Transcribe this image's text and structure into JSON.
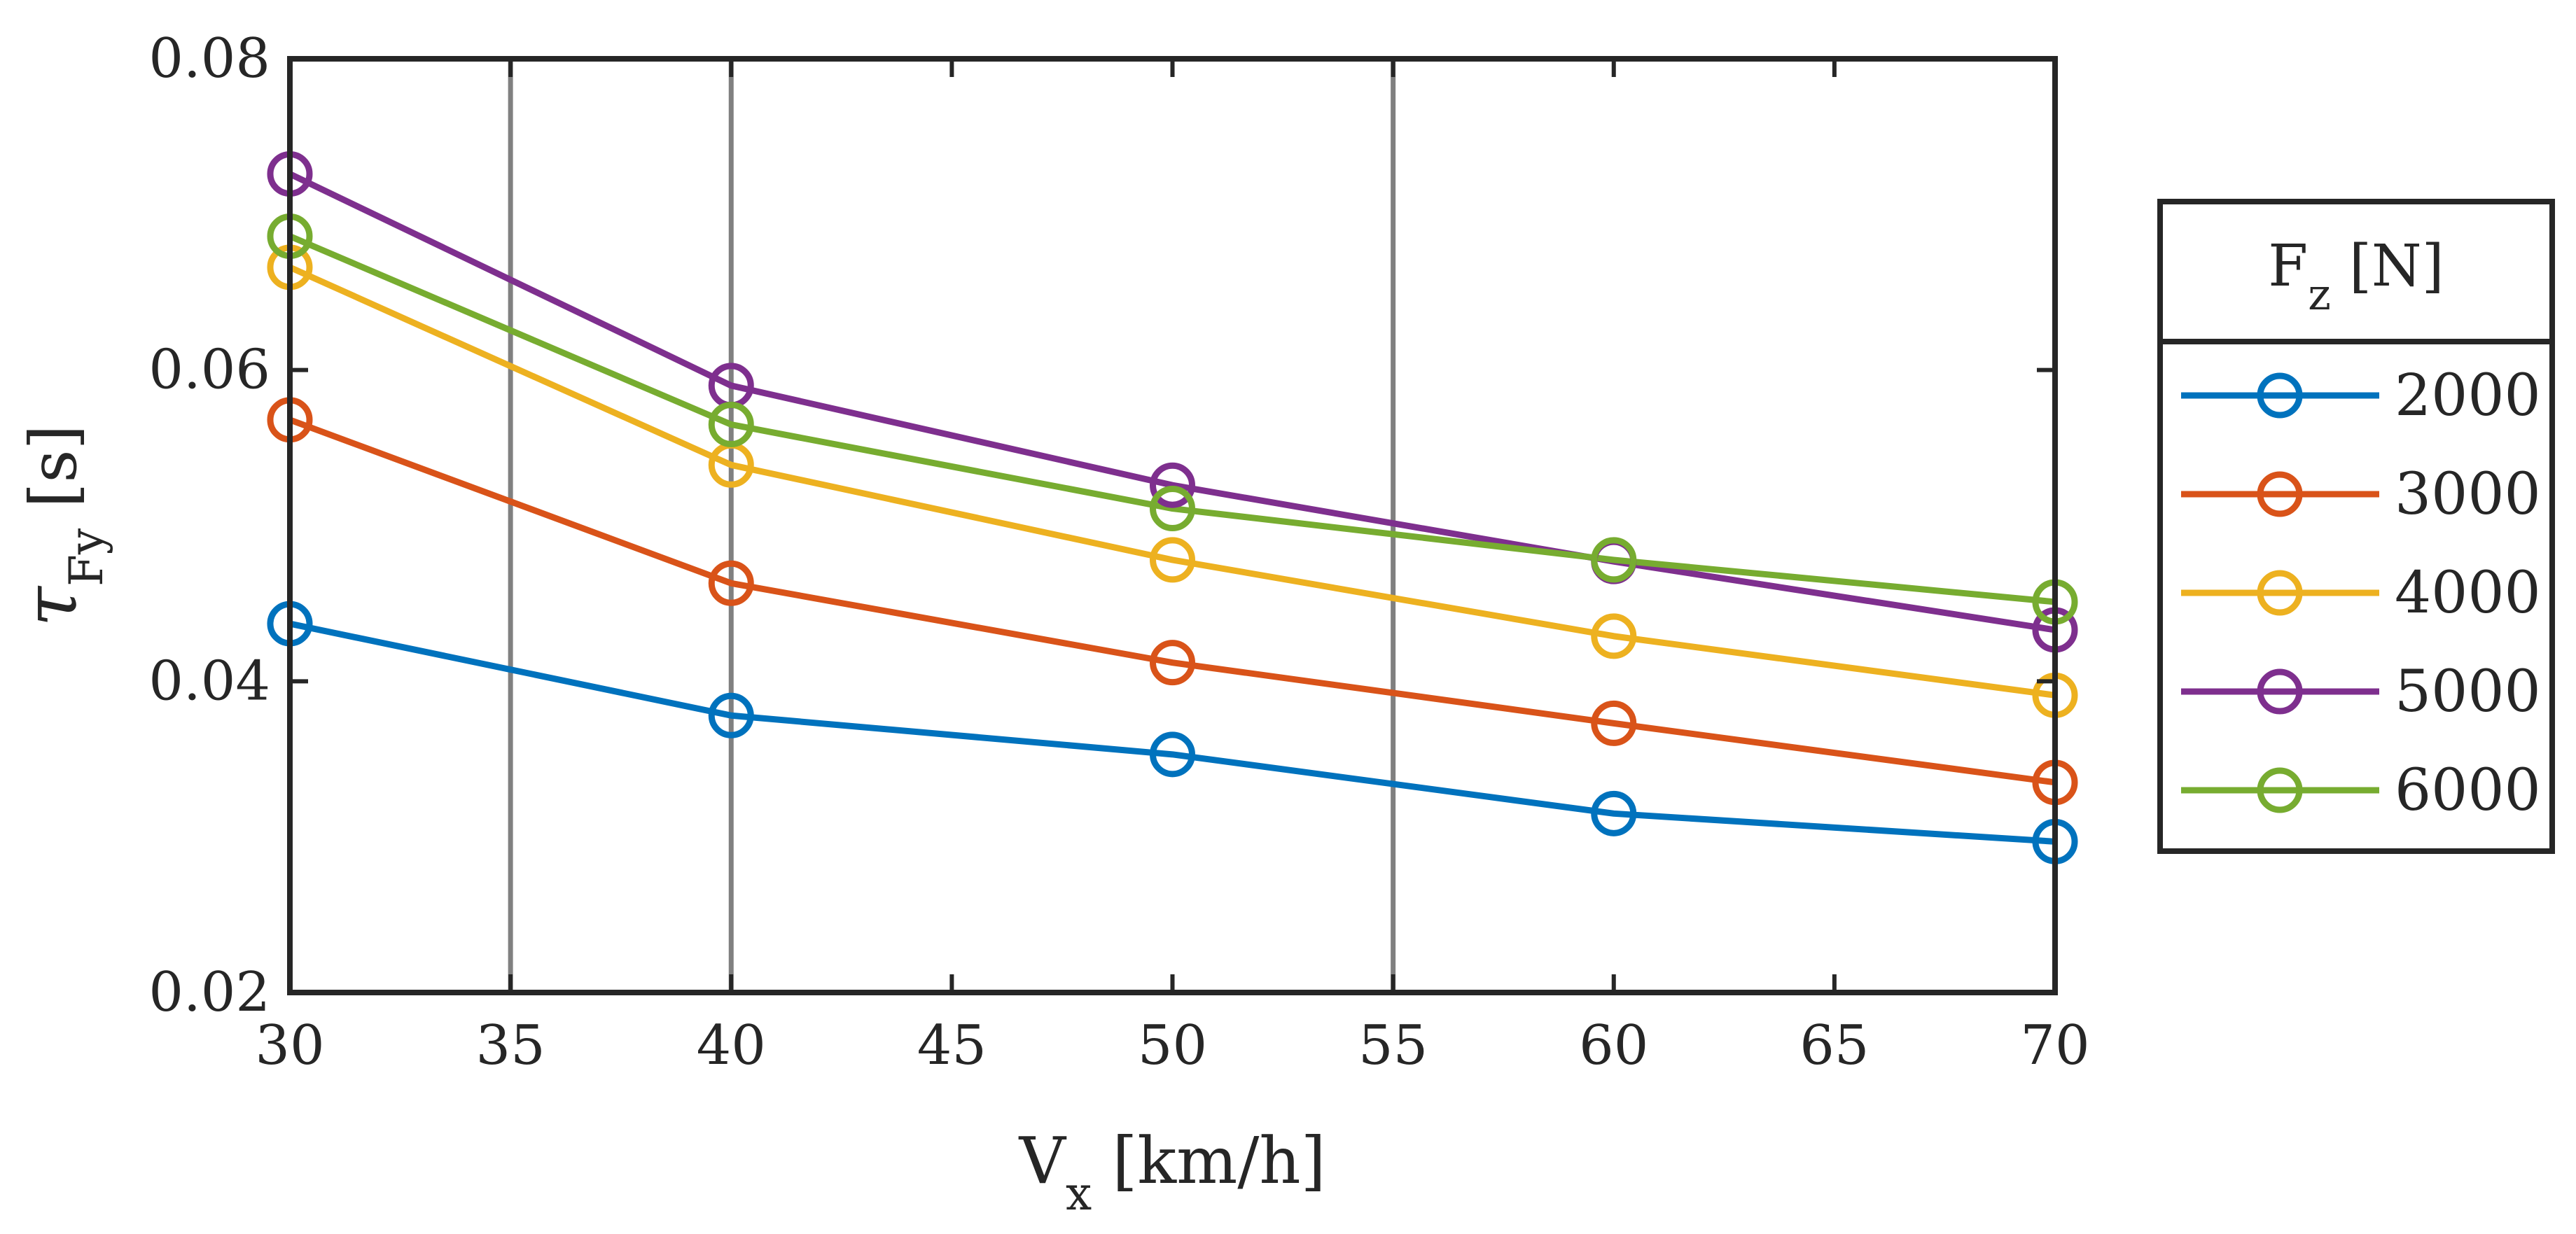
{
  "chart_data": {
    "type": "line",
    "x": [
      30,
      40,
      50,
      60,
      70
    ],
    "xlim": [
      30,
      70
    ],
    "ylim": [
      0.02,
      0.08
    ],
    "xticks": [
      "30",
      "35",
      "40",
      "45",
      "50",
      "55",
      "60",
      "65",
      "70"
    ],
    "yticks": [
      "0.02",
      "0.04",
      "0.06",
      "0.08"
    ],
    "xlabel": {
      "main": "V",
      "sub": "x",
      "unit": " [km/h]"
    },
    "ylabel": {
      "main": "τ",
      "sub": "Fy",
      "unit": " [s]"
    },
    "vertical_lines": [
      35,
      40,
      55
    ],
    "legend": {
      "title_main": "F",
      "title_sub": "z",
      "title_unit": " [N]",
      "location": "outside-right"
    },
    "series": [
      {
        "name": "2000",
        "color": "#0072BD",
        "values": [
          0.0437,
          0.0378,
          0.0353,
          0.0315,
          0.0297
        ]
      },
      {
        "name": "3000",
        "color": "#D95319",
        "values": [
          0.0568,
          0.0463,
          0.0412,
          0.0373,
          0.0335
        ]
      },
      {
        "name": "4000",
        "color": "#EDB120",
        "values": [
          0.0666,
          0.0539,
          0.0478,
          0.0429,
          0.0391
        ]
      },
      {
        "name": "5000",
        "color": "#7E2F8E",
        "values": [
          0.0726,
          0.059,
          0.0526,
          0.0477,
          0.0433
        ]
      },
      {
        "name": "6000",
        "color": "#77AC30",
        "values": [
          0.0686,
          0.0565,
          0.0511,
          0.0478,
          0.0451
        ]
      }
    ]
  }
}
